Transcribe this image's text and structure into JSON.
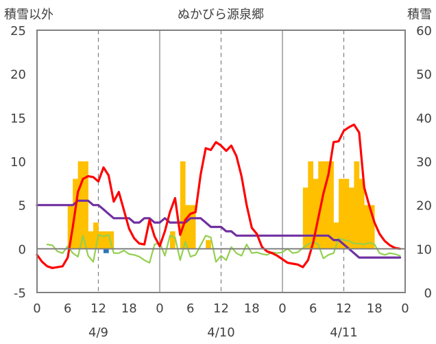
{
  "chart_data": {
    "type": "combo",
    "title": "ぬかびら源泉郷",
    "left_axis_label": "積雪以外",
    "right_axis_label": "積雪",
    "y_left": {
      "min": -5,
      "max": 25,
      "ticks": [
        25,
        20,
        15,
        10,
        5,
        0,
        -5
      ]
    },
    "y_right": {
      "min": 0,
      "max": 60,
      "ticks": [
        60,
        50,
        40,
        30,
        20,
        10,
        0
      ]
    },
    "x_ticks": [
      "0",
      "6",
      "12",
      "18",
      "0",
      "6",
      "12",
      "18",
      "0",
      "6",
      "12",
      "18",
      "0"
    ],
    "date_labels": [
      "4/9",
      "4/10",
      "4/11"
    ],
    "hours": 72,
    "grid": "dashed vertical lines at 12:00 each day, solid lines at day boundaries, solid zero line",
    "colors": {
      "precip": "#FFC000",
      "temperature": "#FF0000",
      "snow_depth": "#7030A0",
      "wind": "#92D050",
      "axis": "#808080",
      "grid": "#808080",
      "text": "#404040"
    },
    "series": [
      {
        "key": "precip",
        "axis": "left",
        "kind": "bar",
        "x": [
          6,
          7,
          8,
          9,
          10,
          11,
          12,
          13,
          14,
          26,
          28,
          29,
          30,
          33,
          52,
          53,
          54,
          55,
          56,
          57,
          58,
          59,
          60,
          61,
          62,
          63,
          64,
          65
        ],
        "values": [
          5,
          8,
          10,
          10,
          2,
          3,
          2,
          2,
          2,
          2,
          10,
          5,
          5,
          1,
          7,
          10,
          8,
          10,
          10,
          10,
          3,
          8,
          8,
          7,
          10,
          8,
          5,
          5
        ]
      },
      {
        "key": "temperature",
        "axis": "left",
        "kind": "line",
        "x": [
          0,
          1,
          2,
          3,
          4,
          5,
          6,
          7,
          8,
          9,
          10,
          11,
          12,
          13,
          14,
          15,
          16,
          17,
          18,
          19,
          20,
          21,
          22,
          23,
          24,
          25,
          26,
          27,
          28,
          29,
          30,
          31,
          32,
          33,
          34,
          35,
          36,
          37,
          38,
          39,
          40,
          41,
          42,
          43,
          44,
          45,
          46,
          47,
          48,
          49,
          50,
          51,
          52,
          53,
          54,
          55,
          56,
          57,
          58,
          59,
          60,
          61,
          62,
          63,
          64,
          65,
          66,
          67,
          68,
          69,
          70,
          71
        ],
        "values": [
          -0.7,
          -1.5,
          -2.0,
          -2.2,
          -2.1,
          -2.0,
          -1.0,
          2.5,
          6.5,
          8.0,
          8.3,
          8.2,
          7.7,
          9.3,
          8.4,
          5.4,
          6.5,
          4.4,
          2.3,
          1.2,
          0.6,
          0.5,
          3.3,
          1.4,
          0.3,
          2.0,
          4.2,
          5.8,
          1.6,
          3.3,
          4.0,
          4.2,
          8.5,
          11.5,
          11.3,
          12.2,
          11.8,
          11.2,
          11.8,
          10.6,
          8.3,
          5.0,
          2.4,
          1.7,
          0.2,
          -0.3,
          -0.5,
          -0.8,
          -1.2,
          -1.6,
          -1.7,
          -1.8,
          -2.1,
          -1.3,
          0.7,
          3.5,
          6.3,
          8.5,
          12.2,
          12.3,
          13.5,
          13.9,
          14.2,
          13.3,
          7.0,
          4.9,
          3.0,
          1.7,
          0.9,
          0.4,
          0.1,
          0.0
        ]
      },
      {
        "key": "snow_depth",
        "axis": "right",
        "kind": "line",
        "x": [
          0,
          4,
          6,
          7,
          8,
          9,
          10,
          11,
          12,
          13,
          14,
          15,
          16,
          17,
          18,
          19,
          20,
          21,
          22,
          23,
          24,
          25,
          26,
          27,
          28,
          29,
          30,
          31,
          32,
          33,
          34,
          35,
          36,
          37,
          38,
          39,
          40,
          41,
          42,
          48,
          52,
          54,
          55,
          56,
          57,
          58,
          59,
          60,
          61,
          62,
          63,
          64,
          66,
          68,
          70,
          71
        ],
        "values": [
          20,
          20,
          20,
          20,
          21,
          21,
          21,
          20,
          20,
          19,
          18,
          17,
          17,
          17,
          17,
          16,
          16,
          17,
          17,
          16,
          16,
          17,
          16,
          16,
          16,
          16,
          17,
          17,
          17,
          16,
          15,
          15,
          15,
          14,
          14,
          13,
          13,
          13,
          13,
          13,
          13,
          13,
          13,
          13,
          13,
          12,
          12,
          11,
          10,
          9,
          8,
          8,
          8,
          8,
          8,
          8
        ]
      },
      {
        "key": "wind",
        "axis": "left",
        "kind": "line",
        "x": [
          2,
          3,
          4,
          5,
          6,
          7,
          8,
          9,
          10,
          11,
          12,
          13,
          14,
          15,
          16,
          17,
          18,
          19,
          20,
          21,
          22,
          23,
          24,
          25,
          26,
          27,
          28,
          29,
          30,
          31,
          32,
          33,
          34,
          35,
          36,
          37,
          38,
          39,
          40,
          41,
          42,
          43,
          44,
          45,
          46,
          47,
          48,
          49,
          50,
          51,
          52,
          53,
          54,
          55,
          56,
          57,
          58,
          59,
          60,
          61,
          62,
          63,
          64,
          65,
          66,
          67,
          68,
          69,
          70,
          71
        ],
        "values": [
          0.5,
          0.4,
          -0.3,
          -0.5,
          0.3,
          -0.5,
          -0.9,
          1.5,
          -0.8,
          -1.5,
          1.6,
          1.4,
          1.6,
          -0.5,
          -0.5,
          -0.2,
          -0.6,
          -0.7,
          -0.9,
          -1.3,
          -1.6,
          0.5,
          0.7,
          -0.8,
          1.5,
          1.3,
          -1.3,
          0.8,
          -0.9,
          -0.7,
          0.4,
          1.5,
          1.3,
          -1.5,
          -0.8,
          -1.3,
          0.2,
          -0.5,
          -0.8,
          0.5,
          -0.5,
          -0.4,
          -0.6,
          -0.7,
          -0.4,
          -0.5,
          -0.4,
          0.0,
          -0.5,
          -0.4,
          0.1,
          0.5,
          0.8,
          0.5,
          -1.1,
          -0.7,
          -0.5,
          1.2,
          1.0,
          0.9,
          0.6,
          0.6,
          0.5,
          0.7,
          0.5,
          -0.5,
          -0.7,
          -0.5,
          -0.6,
          -0.8
        ]
      },
      {
        "key": "small_marker",
        "axis": "left",
        "kind": "bar",
        "x": [
          13
        ],
        "values": [
          -0.5
        ]
      }
    ]
  }
}
